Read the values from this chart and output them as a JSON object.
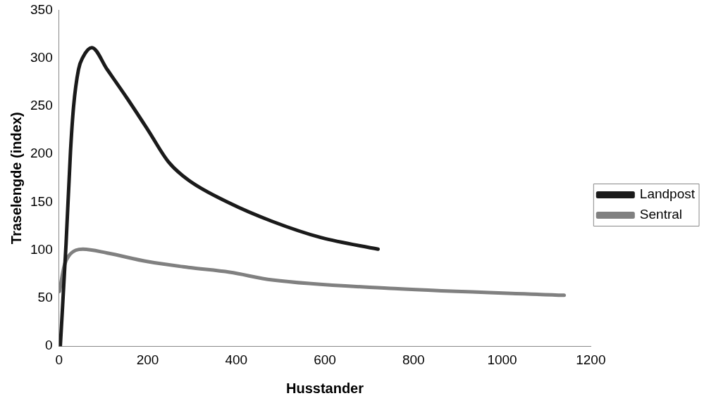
{
  "chart_data": {
    "type": "line",
    "xlabel": "Husstander",
    "ylabel": "Traselengde (index)",
    "xlim": [
      0,
      1200
    ],
    "xticks": [
      0,
      200,
      400,
      600,
      800,
      1000,
      1200
    ],
    "ylim": [
      0,
      350
    ],
    "yticks": [
      0,
      50,
      100,
      150,
      200,
      250,
      300,
      350
    ],
    "grid": false,
    "legend": "right",
    "marker": "none",
    "line_style": "solid",
    "series": [
      {
        "name": "Landpost",
        "color": "#1a1a1a",
        "x": [
          3,
          16,
          26,
          33,
          44,
          54,
          74,
          109,
          154,
          201,
          247,
          292,
          385,
          481,
          592,
          720
        ],
        "values": [
          0,
          107,
          203,
          250,
          288,
          301,
          311,
          288,
          258,
          225,
          192,
          173,
          149,
          130,
          113,
          101
        ]
      },
      {
        "name": "Sentral",
        "color": "#808080",
        "x": [
          1,
          12,
          22,
          54,
          109,
          201,
          292,
          385,
          481,
          757,
          1140
        ],
        "values": [
          57,
          84,
          94,
          101,
          97,
          88,
          82,
          77,
          69,
          60,
          53
        ]
      }
    ]
  }
}
